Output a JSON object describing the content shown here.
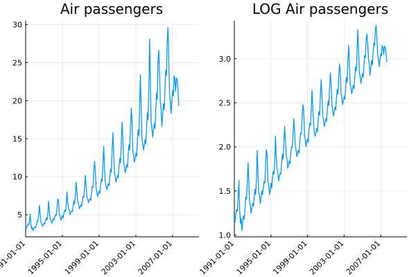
{
  "chart_data": [
    {
      "type": "line",
      "title": "Air passengers",
      "xlabel": "",
      "ylabel": "",
      "x_start": "1991-01",
      "x_end": "2009-09",
      "xlim": [
        "1991-01-01",
        "2009-11-15"
      ],
      "ylim": [
        2.1,
        30.5
      ],
      "xticks": [
        "1991-01-01",
        "1995-01-01",
        "1999-01-01",
        "2003-01-01",
        "2007-01-01"
      ],
      "yticks": [
        5,
        10,
        15,
        20,
        25,
        30
      ],
      "grid": true,
      "legend": "none",
      "color": "#009AFA",
      "series": [
        {
          "values": [
            3.4,
            3.2,
            3.5,
            3.8,
            3.7,
            4.1,
            5.1,
            3.6,
            3.1,
            3.3,
            2.9,
            3.2,
            3.4,
            3.3,
            3.7,
            4.2,
            4.1,
            5.0,
            6.2,
            5.0,
            4.0,
            3.8,
            3.5,
            3.7,
            3.9,
            3.8,
            4.2,
            4.6,
            4.3,
            5.1,
            6.8,
            5.5,
            4.4,
            4.3,
            3.9,
            4.1,
            4.5,
            4.3,
            4.6,
            5.0,
            4.9,
            6.0,
            7.1,
            6.8,
            5.0,
            4.9,
            4.3,
            4.5,
            4.9,
            4.6,
            5.2,
            5.6,
            5.4,
            6.2,
            8.0,
            6.6,
            5.8,
            5.6,
            5.0,
            5.3,
            5.5,
            5.4,
            6.1,
            6.8,
            6.4,
            7.6,
            9.3,
            8.0,
            6.7,
            6.5,
            5.8,
            6.0,
            6.3,
            6.1,
            6.8,
            7.4,
            7.3,
            8.5,
            10.2,
            8.9,
            7.4,
            7.1,
            6.6,
            6.9,
            7.1,
            6.9,
            7.9,
            8.7,
            8.6,
            10.5,
            12.0,
            11.0,
            8.6,
            8.0,
            7.4,
            7.9,
            8.1,
            7.8,
            8.9,
            9.7,
            9.4,
            11.6,
            14.0,
            11.5,
            9.4,
            8.8,
            8.3,
            8.7,
            9.1,
            8.8,
            10.1,
            11.0,
            10.6,
            13.6,
            15.8,
            13.0,
            10.5,
            10.0,
            9.3,
            9.7,
            10.2,
            9.9,
            11.3,
            12.4,
            11.8,
            14.7,
            17.2,
            15.0,
            11.9,
            11.3,
            10.5,
            11.0,
            11.6,
            11.2,
            12.9,
            14.2,
            13.5,
            16.5,
            19.0,
            17.5,
            13.4,
            12.8,
            11.9,
            12.4,
            13.1,
            12.7,
            14.6,
            16.2,
            15.4,
            19.5,
            23.4,
            19.0,
            15.0,
            14.4,
            13.5,
            14.1,
            14.9,
            14.3,
            16.3,
            18.4,
            17.5,
            22.0,
            28.1,
            22.2,
            17.2,
            16.4,
            15.2,
            16.1,
            17.0,
            16.3,
            18.6,
            21.0,
            20.2,
            25.4,
            26.6,
            23.4,
            19.8,
            18.9,
            16.6,
            18.1,
            19.6,
            18.8,
            21.4,
            24.0,
            23.3,
            27.8,
            29.6,
            25.5,
            21.0,
            20.0,
            18.3,
            19.8,
            21.4,
            20.6,
            23.3,
            22.9,
            21.2,
            23.0,
            22.8,
            21.5,
            19.3
          ]
        }
      ]
    },
    {
      "type": "line",
      "title": "LOG Air passengers",
      "xlabel": "",
      "ylabel": "",
      "x_start": "1991-01",
      "x_end": "2009-09",
      "xlim": [
        "1991-01-01",
        "2009-11-15"
      ],
      "ylim": [
        0.98,
        3.43
      ],
      "xticks": [
        "1991-01-01",
        "1995-01-01",
        "1999-01-01",
        "2003-01-01",
        "2007-01-01"
      ],
      "yticks": [
        "1.0",
        "1.5",
        "2.0",
        "2.5",
        "3.0"
      ],
      "grid": true,
      "legend": "none",
      "color": "#009AFA",
      "series": [
        {
          "values": [
            1.18,
            1.15,
            1.25,
            1.29,
            1.27,
            1.43,
            1.62,
            1.3,
            1.13,
            1.19,
            1.05,
            1.16,
            1.22,
            1.18,
            1.3,
            1.43,
            1.41,
            1.6,
            1.82,
            1.6,
            1.38,
            1.33,
            1.25,
            1.3,
            1.36,
            1.33,
            1.43,
            1.52,
            1.46,
            1.62,
            1.96,
            1.7,
            1.48,
            1.45,
            1.36,
            1.41,
            1.5,
            1.46,
            1.53,
            1.61,
            1.59,
            1.79,
            1.97,
            1.92,
            1.61,
            1.59,
            1.46,
            1.5,
            1.59,
            1.53,
            1.65,
            1.72,
            1.69,
            1.82,
            2.12,
            1.89,
            1.76,
            1.72,
            1.61,
            1.67,
            1.7,
            1.69,
            1.81,
            1.92,
            1.86,
            2.03,
            2.23,
            2.08,
            1.9,
            1.87,
            1.76,
            1.79,
            1.84,
            1.81,
            1.92,
            2.0,
            1.99,
            2.14,
            2.32,
            2.19,
            2.0,
            1.96,
            1.89,
            1.93,
            1.96,
            1.93,
            2.07,
            2.16,
            2.15,
            2.35,
            2.48,
            2.4,
            2.15,
            2.08,
            2.0,
            2.07,
            2.09,
            2.05,
            2.19,
            2.27,
            2.24,
            2.45,
            2.64,
            2.44,
            2.24,
            2.17,
            2.12,
            2.16,
            2.21,
            2.17,
            2.31,
            2.4,
            2.36,
            2.61,
            2.76,
            2.56,
            2.35,
            2.3,
            2.23,
            2.27,
            2.32,
            2.29,
            2.42,
            2.52,
            2.47,
            2.69,
            2.84,
            2.71,
            2.48,
            2.42,
            2.35,
            2.4,
            2.45,
            2.42,
            2.56,
            2.65,
            2.6,
            2.8,
            2.94,
            2.86,
            2.6,
            2.55,
            2.48,
            2.52,
            2.57,
            2.54,
            2.68,
            2.79,
            2.73,
            2.97,
            3.15,
            2.94,
            2.71,
            2.67,
            2.6,
            2.65,
            2.7,
            2.66,
            2.79,
            2.91,
            2.86,
            3.09,
            3.33,
            3.1,
            2.84,
            2.8,
            2.72,
            2.78,
            2.83,
            2.79,
            2.92,
            3.04,
            3.01,
            3.23,
            3.28,
            3.15,
            2.99,
            2.94,
            2.81,
            2.9,
            2.98,
            2.93,
            3.06,
            3.18,
            3.15,
            3.32,
            3.38,
            3.24,
            3.04,
            3.0,
            2.91,
            2.99,
            3.06,
            3.03,
            3.15,
            3.13,
            3.05,
            3.14,
            3.13,
            3.07,
            2.96
          ]
        }
      ]
    }
  ]
}
